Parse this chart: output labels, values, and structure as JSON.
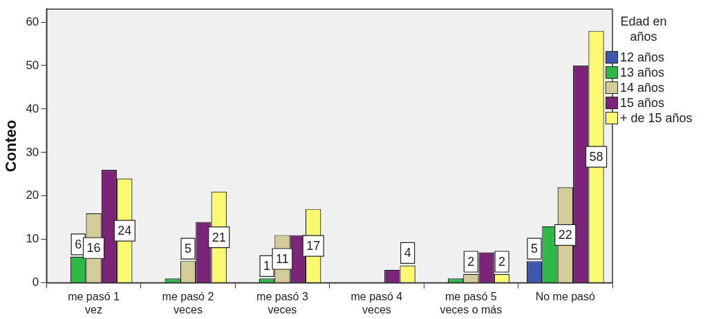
{
  "chart_data": {
    "type": "bar",
    "ylabel": "Conteo",
    "legend_title": "Edad en años",
    "legend": "right",
    "categories": [
      "me pasó 1 vez",
      "me pasó 2 veces",
      "me pasó 3 veces",
      "me pasó 4 veces",
      "me pasó 5 veces o más",
      "No me pasó"
    ],
    "ylim": [
      0,
      63
    ],
    "yticks": [
      0,
      10,
      20,
      30,
      40,
      50,
      60
    ],
    "grid": false,
    "series": [
      {
        "name": "12 años",
        "color": "#3e58ac",
        "values": [
          0,
          0,
          0,
          0,
          0,
          5
        ],
        "value_labels": [
          null,
          null,
          null,
          null,
          null,
          "5"
        ]
      },
      {
        "name": "13 años",
        "color": "#2eb848",
        "values": [
          6,
          1,
          1,
          0,
          1,
          13
        ],
        "value_labels": [
          "6",
          null,
          "1",
          null,
          null,
          null
        ]
      },
      {
        "name": "14 años",
        "color": "#d4cc99",
        "values": [
          16,
          5,
          11,
          0,
          2,
          22
        ],
        "value_labels": [
          "16",
          "5",
          "11",
          null,
          "2",
          "22"
        ]
      },
      {
        "name": "15 años",
        "color": "#7b2578",
        "values": [
          26,
          14,
          11,
          3,
          7,
          50
        ],
        "value_labels": [
          null,
          null,
          null,
          null,
          null,
          null
        ]
      },
      {
        "name": "+ de 15 años",
        "color": "#fbf872",
        "values": [
          24,
          21,
          17,
          4,
          2,
          58
        ],
        "value_labels": [
          "24",
          "21",
          "17",
          "4",
          "2",
          "58"
        ]
      }
    ]
  }
}
